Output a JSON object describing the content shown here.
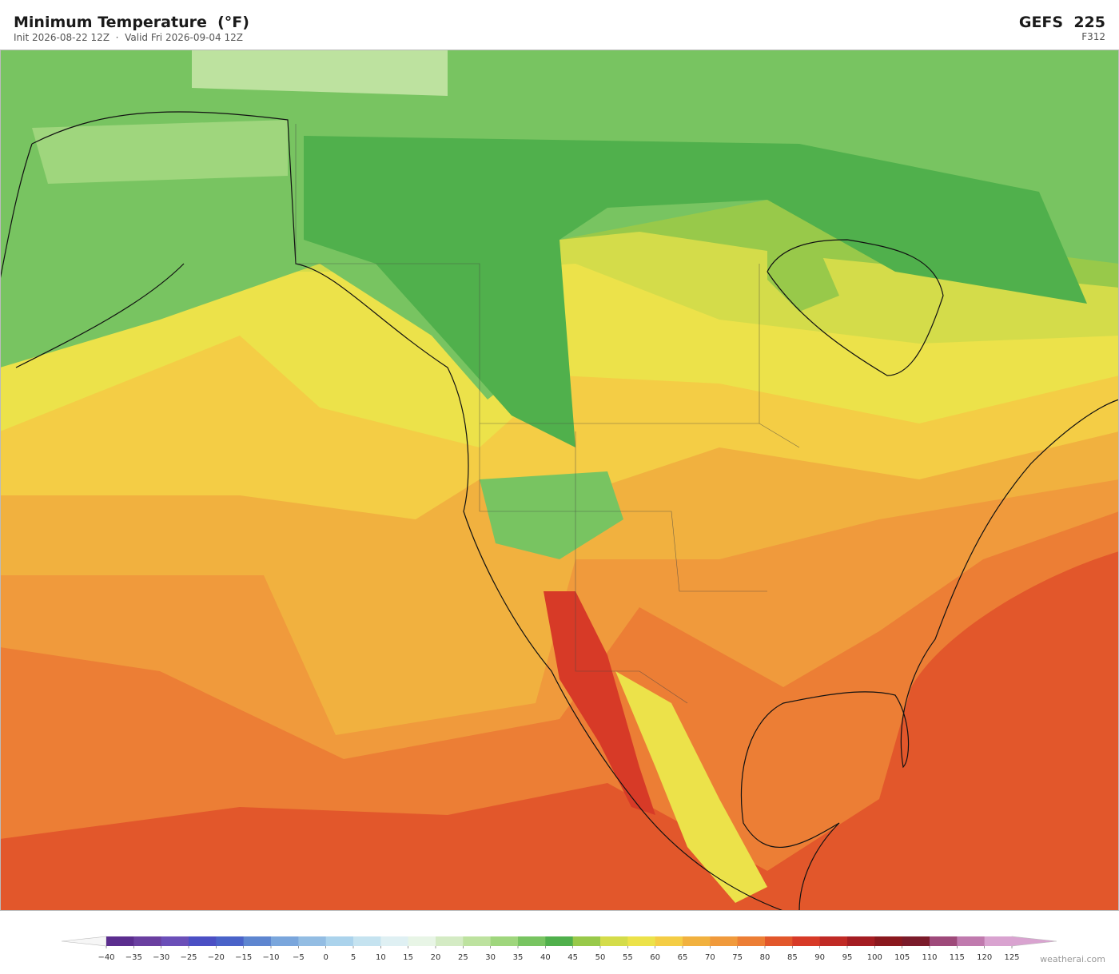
{
  "header": {
    "title": "Minimum Temperature  (°F)",
    "subtitle": "Init 2026-08-22 12Z  ·  Valid Fri 2026-09-04 12Z",
    "model": "GEFS  225",
    "forecast_hour": "F312"
  },
  "colorbar": {
    "labels": [
      "−40",
      "−35",
      "−30",
      "−25",
      "−20",
      "−15",
      "−10",
      "−5",
      "0",
      "5",
      "10",
      "15",
      "20",
      "25",
      "30",
      "35",
      "40",
      "45",
      "50",
      "55",
      "60",
      "65",
      "70",
      "75",
      "80",
      "85",
      "90",
      "95",
      "100",
      "105",
      "110",
      "115",
      "120",
      "125"
    ],
    "colors": [
      "#5b2d8e",
      "#6a3fa0",
      "#6b4fb8",
      "#4b4fc4",
      "#4a63c9",
      "#5e86d0",
      "#7aa6dc",
      "#93bde3",
      "#abd3ec",
      "#c5e3f0",
      "#dff0f3",
      "#e8f5e6",
      "#d4ebc4",
      "#bde29f",
      "#9fd67d",
      "#78c461",
      "#50b04c",
      "#98c94a",
      "#d4dc4a",
      "#ece24a",
      "#f4cd45",
      "#f1b13f",
      "#f09a3c",
      "#ec7e35",
      "#e2572b",
      "#d73a27",
      "#c02a25",
      "#a41d22",
      "#8a181e",
      "#7a1b2a",
      "#9e4a7a",
      "#c07aae",
      "#d9a3d0"
    ],
    "under_color": "#f6f6f6",
    "over_color": "#d9a3d0"
  },
  "footer": {
    "credit": "weatherai.com"
  }
}
